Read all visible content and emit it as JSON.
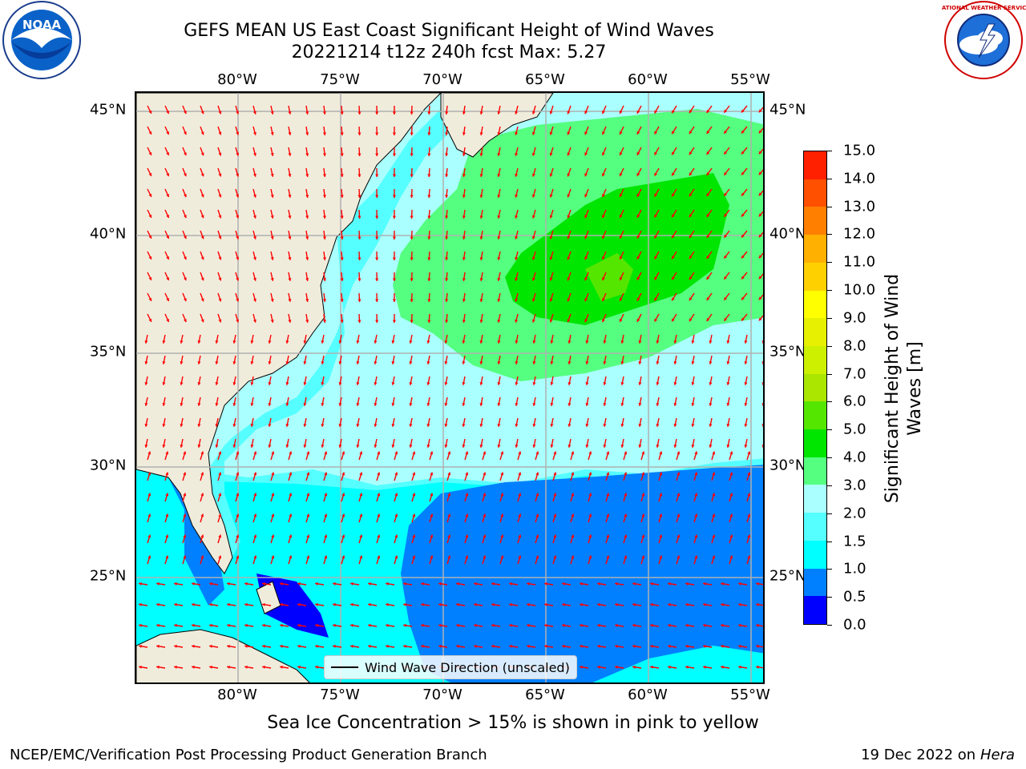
{
  "title": {
    "line1": "GEFS MEAN US East Coast Significant Height of Wind Waves",
    "line2": "20221214 t12z 240h fcst   Max: 5.27"
  },
  "logos": {
    "left": "noaa-logo",
    "right": "nws-logo",
    "left_text": "NOAA",
    "right_text": "NATIONAL WEATHER SERVICE"
  },
  "axes": {
    "lon_labels": [
      "80°W",
      "75°W",
      "70°W",
      "65°W",
      "60°W",
      "55°W"
    ],
    "lat_labels": [
      "45°N",
      "40°N",
      "35°N",
      "30°N",
      "25°N"
    ]
  },
  "legend": {
    "label": "Wind Wave Direction (unscaled)"
  },
  "colorbar": {
    "title_line1": "Significant Height of Wind",
    "title_line2": "Waves [m]",
    "ticks": [
      "0.0",
      "0.5",
      "1.0",
      "1.5",
      "2.0",
      "3.0",
      "4.0",
      "5.0",
      "6.0",
      "7.0",
      "8.0",
      "9.0",
      "10.0",
      "11.0",
      "12.0",
      "13.0",
      "14.0",
      "15.0"
    ],
    "colors": [
      "#0000ff",
      "#0080ff",
      "#00ffff",
      "#55ffff",
      "#aaffff",
      "#55ff80",
      "#00e600",
      "#55e600",
      "#aae600",
      "#ccf000",
      "#e6f000",
      "#ffff00",
      "#ffd000",
      "#ffb000",
      "#ff8000",
      "#ff5000",
      "#ff2000"
    ]
  },
  "map_colors": {
    "land": "#efecdc",
    "band_0_05": "#0000ff",
    "band_05_1": "#0080ff",
    "band_1_15": "#00ffff",
    "band_15_2": "#55ffff",
    "band_2_3": "#aaffff",
    "band_3_4": "#55ff80",
    "band_4_5": "#00e600",
    "band_5_6": "#55e600",
    "arrow": "#ff0000",
    "grid": "#b0b0b0"
  },
  "subtitle": "Sea Ice Concentration > 15% is shown in pink to yellow",
  "credits": {
    "left": "NCEP/EMC/Verification Post Processing Product Generation Branch",
    "right_date": "19 Dec 2022 on",
    "right_host": "Hera"
  }
}
